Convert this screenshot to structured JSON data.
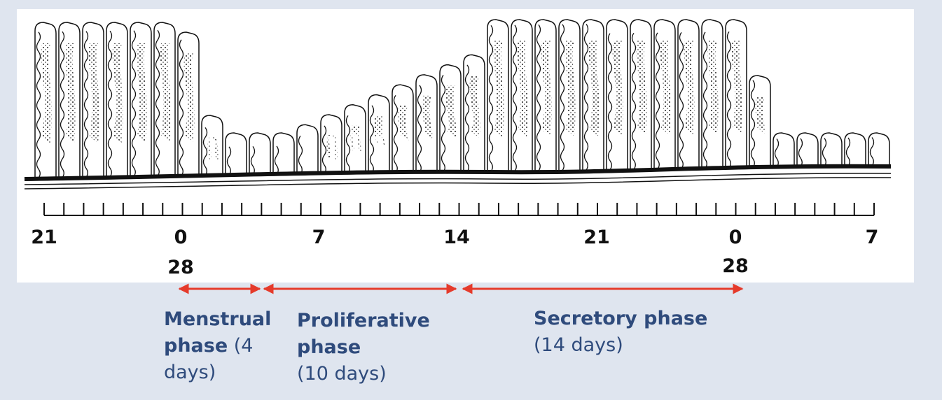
{
  "scale": {
    "labels": [
      "21",
      "0",
      "7",
      "14",
      "21",
      "0",
      "7"
    ],
    "cycle_end_labels": [
      "28",
      "28"
    ]
  },
  "phases": [
    {
      "name": "Menstrual phase",
      "duration": "(4 days)"
    },
    {
      "name": "Proliferative phase",
      "duration": "(10 days)"
    },
    {
      "name": "Secretory phase",
      "duration": "(14 days)"
    }
  ]
}
